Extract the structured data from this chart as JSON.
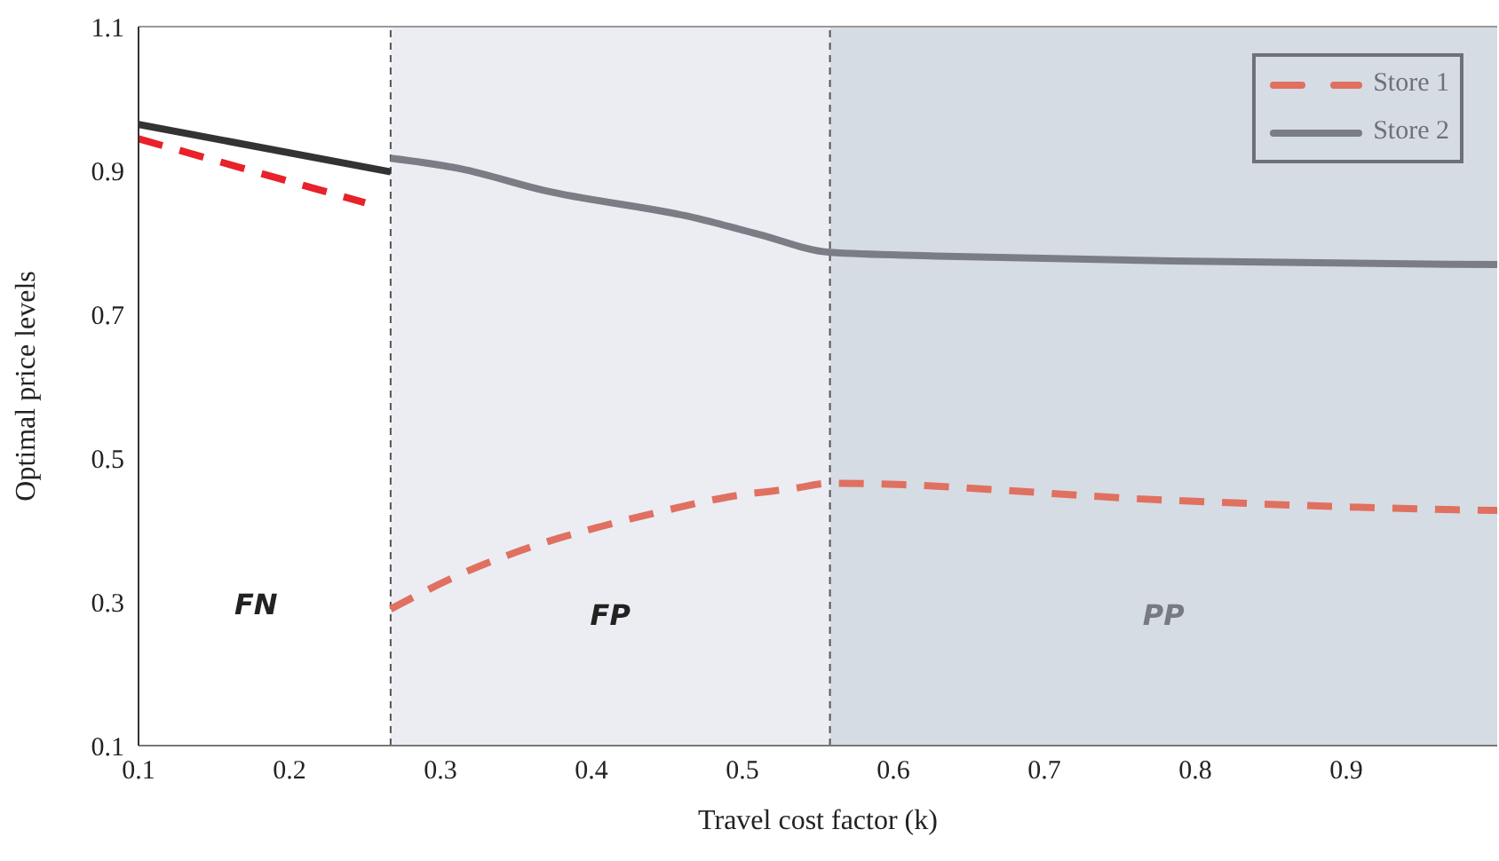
{
  "chart_data": {
    "type": "line",
    "xlabel": "Travel cost factor (k)",
    "ylabel": "Optimal price levels",
    "xlim": [
      0.1,
      1.0
    ],
    "xticks": [
      0.1,
      0.2,
      0.3,
      0.4,
      0.5,
      0.6,
      0.7,
      0.8,
      0.9
    ],
    "ylim": [
      0.1,
      1.1
    ],
    "yticks": [
      0.1,
      0.3,
      0.5,
      0.7,
      0.9,
      1.1
    ],
    "grid": false,
    "legend": "top right",
    "marker": "none",
    "annotations": [
      "FN"
    ],
    "bands": [
      {
        "axis": "x",
        "from": 0.267,
        "to": 0.558,
        "label": "FP",
        "color": "#ecedf3"
      },
      {
        "axis": "x",
        "from": 0.558,
        "to": 1.0,
        "label": "PP",
        "color": "#d6dce4"
      }
    ],
    "ref_lines": [
      {
        "axis": "x",
        "value": 0.267,
        "color": "#555555",
        "line_style": "dashed"
      },
      {
        "axis": "x",
        "value": 0.558,
        "color": "#555555",
        "line_style": "dashed"
      }
    ],
    "series": [
      {
        "color": "#333333",
        "line_style": "solid",
        "x": [
          0.1,
          0.267
        ],
        "values": [
          0.964,
          0.898
        ]
      },
      {
        "color": "#e8212a",
        "line_style": "dashed",
        "x": [
          0.1,
          0.25
        ],
        "values": [
          0.944,
          0.855
        ]
      },
      {
        "name": "Store 1",
        "color": "#e07060",
        "line_style": "dashed",
        "x": [
          0.267,
          0.314,
          0.361,
          0.405,
          0.447,
          0.491,
          0.535,
          0.558,
          0.785,
          0.973,
          1.0
        ],
        "values": [
          0.29,
          0.339,
          0.377,
          0.404,
          0.426,
          0.446,
          0.458,
          0.465,
          0.441,
          0.428,
          0.427
        ]
      },
      {
        "name": "Store 2",
        "color": "#7a7d85",
        "line_style": "solid",
        "x": [
          0.267,
          0.314,
          0.367,
          0.471,
          0.511,
          0.558,
          0.628,
          0.785,
          1.0
        ],
        "values": [
          0.917,
          0.902,
          0.873,
          0.833,
          0.811,
          0.786,
          0.781,
          0.774,
          0.769
        ]
      }
    ]
  }
}
